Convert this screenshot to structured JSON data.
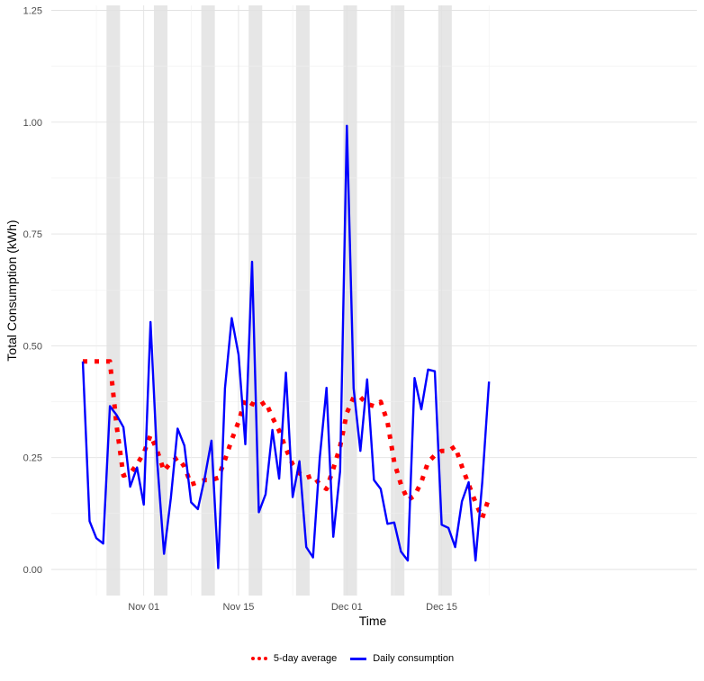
{
  "chart_data": {
    "type": "line",
    "xlabel": "Time",
    "ylabel": "Total Consumption (kWh)",
    "ylim": [
      0,
      1.25
    ],
    "y_ticks": [
      "0.00",
      "0.25",
      "0.50",
      "0.75",
      "1.00",
      "1.25"
    ],
    "x_ticks": [
      {
        "date": "2023-11-01",
        "label": "Nov 01"
      },
      {
        "date": "2023-11-15",
        "label": "Nov 15"
      },
      {
        "date": "2023-12-01",
        "label": "Dec 01"
      },
      {
        "date": "2023-12-15",
        "label": "Dec 15"
      }
    ],
    "x_range": [
      "2023-10-18",
      "2023-12-27"
    ],
    "grid": true,
    "legend_position": "bottom",
    "shaded_periods": [
      [
        "2023-10-27",
        "2023-10-29"
      ],
      [
        "2023-11-03",
        "2023-11-05"
      ],
      [
        "2023-11-10",
        "2023-11-12"
      ],
      [
        "2023-11-17",
        "2023-11-19"
      ],
      [
        "2023-11-24",
        "2023-11-26"
      ],
      [
        "2023-12-01",
        "2023-12-03"
      ],
      [
        "2023-12-08",
        "2023-12-10"
      ],
      [
        "2023-12-15",
        "2023-12-17"
      ]
    ],
    "series": [
      {
        "name": "5-day average",
        "color": "#ff0000",
        "style": "dotted",
        "points": [
          [
            "2023-10-23",
            0.465
          ],
          [
            "2023-10-24",
            0.465
          ],
          [
            "2023-10-25",
            0.465
          ],
          [
            "2023-10-26",
            0.465
          ],
          [
            "2023-10-27",
            0.465
          ],
          [
            "2023-10-28",
            0.32
          ],
          [
            "2023-10-29",
            0.21
          ],
          [
            "2023-10-30",
            0.215
          ],
          [
            "2023-10-31",
            0.235
          ],
          [
            "2023-11-01",
            0.26
          ],
          [
            "2023-11-02",
            0.3
          ],
          [
            "2023-11-03",
            0.265
          ],
          [
            "2023-11-04",
            0.22
          ],
          [
            "2023-11-05",
            0.24
          ],
          [
            "2023-11-06",
            0.25
          ],
          [
            "2023-11-07",
            0.23
          ],
          [
            "2023-11-08",
            0.19
          ],
          [
            "2023-11-09",
            0.195
          ],
          [
            "2023-11-10",
            0.2
          ],
          [
            "2023-11-11",
            0.2
          ],
          [
            "2023-11-12",
            0.205
          ],
          [
            "2023-11-13",
            0.245
          ],
          [
            "2023-11-14",
            0.29
          ],
          [
            "2023-11-15",
            0.33
          ],
          [
            "2023-11-16",
            0.38
          ],
          [
            "2023-11-17",
            0.37
          ],
          [
            "2023-11-18",
            0.365
          ],
          [
            "2023-11-19",
            0.375
          ],
          [
            "2023-11-20",
            0.34
          ],
          [
            "2023-11-21",
            0.31
          ],
          [
            "2023-11-22",
            0.27
          ],
          [
            "2023-11-23",
            0.235
          ],
          [
            "2023-11-24",
            0.215
          ],
          [
            "2023-11-25",
            0.205
          ],
          [
            "2023-11-26",
            0.21
          ],
          [
            "2023-11-27",
            0.19
          ],
          [
            "2023-11-28",
            0.18
          ],
          [
            "2023-11-29",
            0.225
          ],
          [
            "2023-11-30",
            0.275
          ],
          [
            "2023-12-01",
            0.35
          ],
          [
            "2023-12-02",
            0.385
          ],
          [
            "2023-12-03",
            0.385
          ],
          [
            "2023-12-04",
            0.37
          ],
          [
            "2023-12-05",
            0.365
          ],
          [
            "2023-12-06",
            0.375
          ],
          [
            "2023-12-07",
            0.33
          ],
          [
            "2023-12-08",
            0.24
          ],
          [
            "2023-12-09",
            0.19
          ],
          [
            "2023-12-10",
            0.155
          ],
          [
            "2023-12-11",
            0.165
          ],
          [
            "2023-12-12",
            0.195
          ],
          [
            "2023-12-13",
            0.24
          ],
          [
            "2023-12-14",
            0.255
          ],
          [
            "2023-12-15",
            0.265
          ],
          [
            "2023-12-16",
            0.265
          ],
          [
            "2023-12-17",
            0.275
          ],
          [
            "2023-12-18",
            0.23
          ],
          [
            "2023-12-19",
            0.19
          ],
          [
            "2023-12-20",
            0.15
          ],
          [
            "2023-12-21",
            0.115
          ],
          [
            "2023-12-22",
            0.16
          ]
        ]
      },
      {
        "name": "Daily consumption",
        "color": "#0000ff",
        "style": "solid",
        "points": [
          [
            "2023-10-23",
            0.465
          ],
          [
            "2023-10-24",
            0.108
          ],
          [
            "2023-10-25",
            0.07
          ],
          [
            "2023-10-26",
            0.058
          ],
          [
            "2023-10-27",
            0.365
          ],
          [
            "2023-10-28",
            0.345
          ],
          [
            "2023-10-29",
            0.318
          ],
          [
            "2023-10-30",
            0.185
          ],
          [
            "2023-10-31",
            0.228
          ],
          [
            "2023-11-01",
            0.145
          ],
          [
            "2023-11-02",
            0.553
          ],
          [
            "2023-11-03",
            0.24
          ],
          [
            "2023-11-04",
            0.035
          ],
          [
            "2023-11-05",
            0.16
          ],
          [
            "2023-11-06",
            0.315
          ],
          [
            "2023-11-07",
            0.277
          ],
          [
            "2023-11-08",
            0.15
          ],
          [
            "2023-11-09",
            0.135
          ],
          [
            "2023-11-10",
            0.205
          ],
          [
            "2023-11-11",
            0.288
          ],
          [
            "2023-11-12",
            0.003
          ],
          [
            "2023-11-13",
            0.405
          ],
          [
            "2023-11-14",
            0.562
          ],
          [
            "2023-11-15",
            0.48
          ],
          [
            "2023-11-16",
            0.28
          ],
          [
            "2023-11-17",
            0.688
          ],
          [
            "2023-11-18",
            0.128
          ],
          [
            "2023-11-19",
            0.168
          ],
          [
            "2023-11-20",
            0.312
          ],
          [
            "2023-11-21",
            0.203
          ],
          [
            "2023-11-22",
            0.44
          ],
          [
            "2023-11-23",
            0.162
          ],
          [
            "2023-11-24",
            0.242
          ],
          [
            "2023-11-25",
            0.05
          ],
          [
            "2023-11-26",
            0.027
          ],
          [
            "2023-11-27",
            0.25
          ],
          [
            "2023-11-28",
            0.406
          ],
          [
            "2023-11-29",
            0.073
          ],
          [
            "2023-11-30",
            0.22
          ],
          [
            "2023-12-01",
            0.992
          ],
          [
            "2023-12-02",
            0.405
          ],
          [
            "2023-12-03",
            0.265
          ],
          [
            "2023-12-04",
            0.425
          ],
          [
            "2023-12-05",
            0.2
          ],
          [
            "2023-12-06",
            0.18
          ],
          [
            "2023-12-07",
            0.102
          ],
          [
            "2023-12-08",
            0.105
          ],
          [
            "2023-12-09",
            0.04
          ],
          [
            "2023-12-10",
            0.02
          ],
          [
            "2023-12-11",
            0.428
          ],
          [
            "2023-12-12",
            0.358
          ],
          [
            "2023-12-13",
            0.447
          ],
          [
            "2023-12-14",
            0.443
          ],
          [
            "2023-12-15",
            0.1
          ],
          [
            "2023-12-16",
            0.093
          ],
          [
            "2023-12-17",
            0.05
          ],
          [
            "2023-12-18",
            0.152
          ],
          [
            "2023-12-19",
            0.195
          ],
          [
            "2023-12-20",
            0.02
          ],
          [
            "2023-12-21",
            0.195
          ],
          [
            "2023-12-22",
            0.42
          ]
        ]
      }
    ]
  },
  "legend": {
    "items": [
      {
        "label": "5-day average",
        "color": "#ff0000"
      },
      {
        "label": "Daily consumption",
        "color": "#0000ff"
      }
    ]
  }
}
